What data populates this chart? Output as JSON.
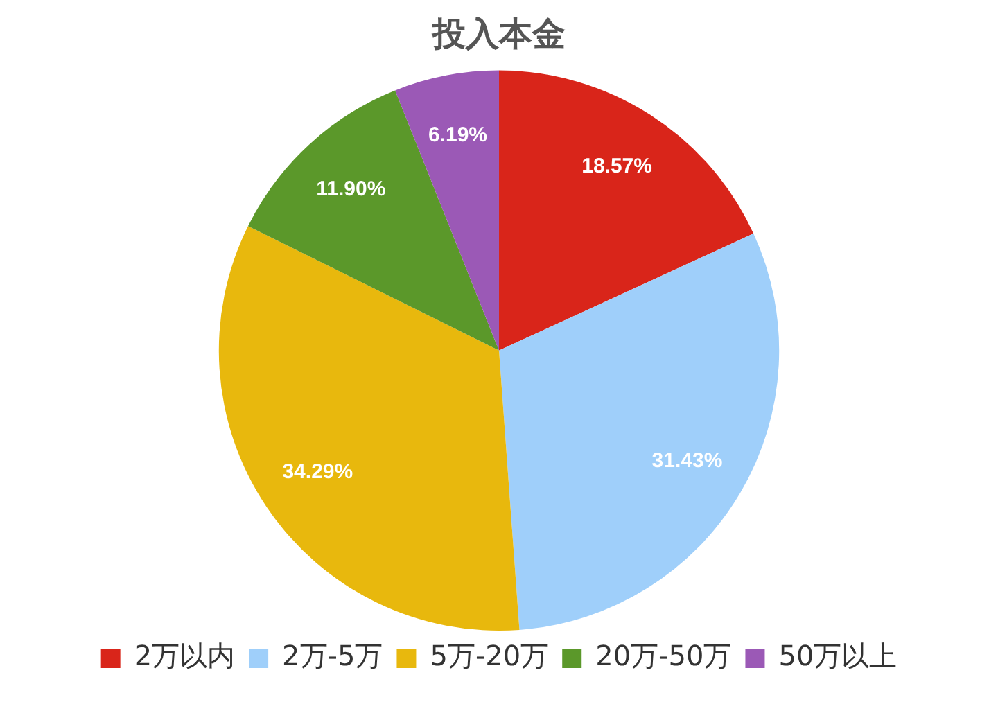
{
  "chart_data": {
    "type": "pie",
    "title": "投入本金",
    "categories": [
      "2万以内",
      "2万-5万",
      "5万-20万",
      "20万-50万",
      "50万以上"
    ],
    "values": [
      18.57,
      31.43,
      34.29,
      11.9,
      6.19
    ],
    "value_labels": [
      "18.57%",
      "31.43%",
      "34.29%",
      "11.90%",
      "6.19%"
    ],
    "colors": [
      "#d9251a",
      "#9fcffa",
      "#e8b80d",
      "#5b982a",
      "#9b59b6"
    ],
    "legend": "bottom"
  }
}
